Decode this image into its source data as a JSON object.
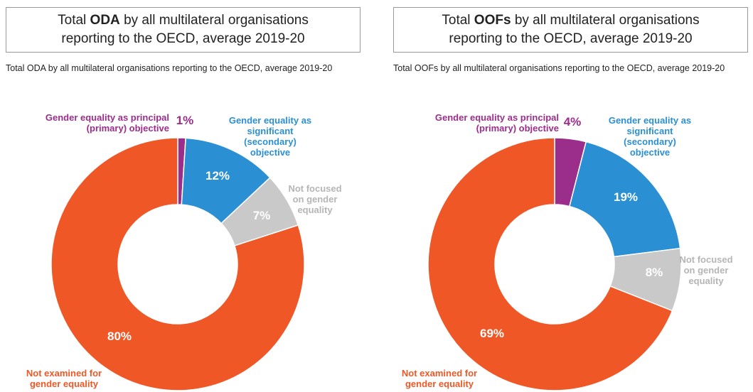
{
  "chart_data": [
    {
      "type": "pie",
      "donut": true,
      "title": [
        "Total",
        "ODA",
        "by all multilateral organisations",
        "reporting to the OECD, average 2019-20"
      ],
      "subtitle": "Total ODA by all multilateral organisations reporting to the OECD, average 2019-20",
      "categories": [
        "Gender equality as principal (primary) objective",
        "Gender equality as significant (secondary) objective",
        "Not focused on gender equality",
        "Not examined for gender equality"
      ],
      "values": [
        1,
        12,
        7,
        80
      ],
      "value_labels": [
        "1%",
        "12%",
        "7%",
        "80%"
      ],
      "colors": [
        "#9b2d8b",
        "#2b8fd3",
        "#c9c9c9",
        "#ef5726"
      ]
    },
    {
      "type": "pie",
      "donut": true,
      "title": [
        "Total",
        "OOFs",
        "by all multilateral organisations",
        "reporting to the OECD, average 2019-20"
      ],
      "subtitle": "Total OOFs by all multilateral organisations reporting to the OECD, average 2019-20",
      "categories": [
        "Gender equality as principal (primary) objective",
        "Gender equality as significant (secondary) objective",
        "Not focused on gender equality",
        "Not examined for gender equality"
      ],
      "values": [
        4,
        19,
        8,
        69
      ],
      "value_labels": [
        "4%",
        "19%",
        "8%",
        "69%"
      ],
      "colors": [
        "#9b2d8b",
        "#2b8fd3",
        "#c9c9c9",
        "#ef5726"
      ]
    }
  ]
}
